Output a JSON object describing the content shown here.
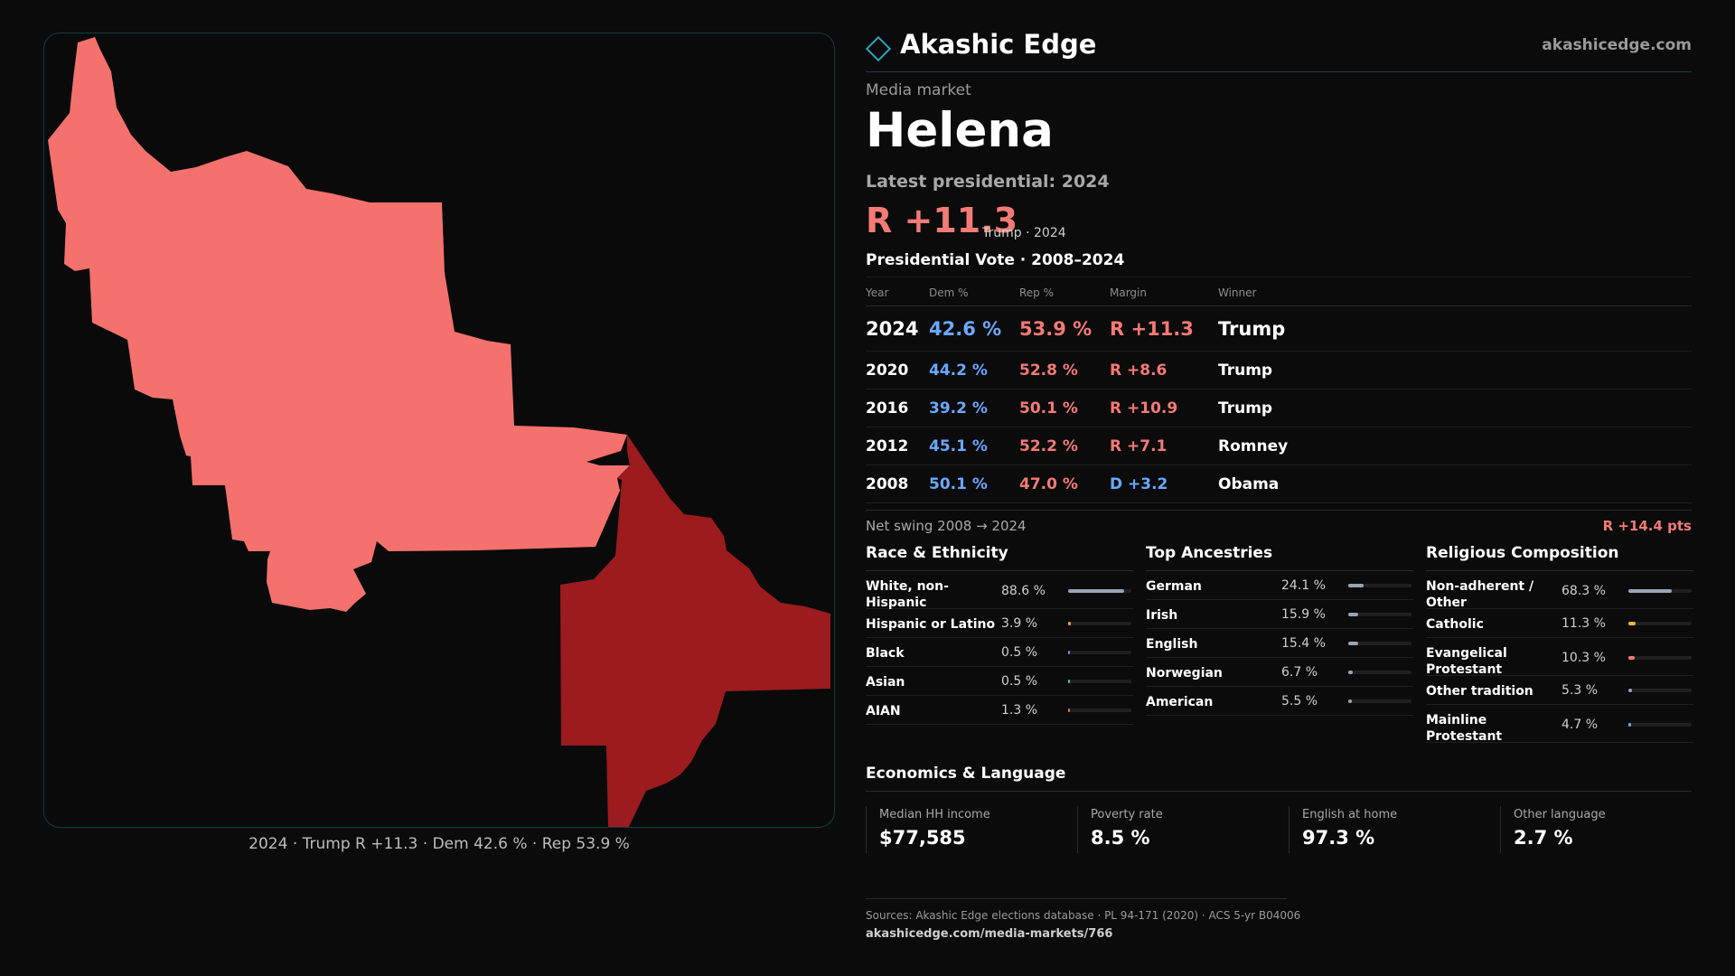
{
  "brand": {
    "name": "Akashic Edge",
    "url": "akashicedge.com"
  },
  "header": {
    "kicker": "Media market",
    "market_name": "Helena",
    "latest": "Latest presidential: 2024",
    "margin": "R +11.3",
    "margin_note": "Trump · 2024"
  },
  "map": {
    "caption": "2024 · Trump R +11.3 · Dem 42.6 % · Rep 53.9 %",
    "colors": {
      "light_rep": "#f4716d",
      "dark_rep": "#9b1b1e",
      "border": "#143a40"
    }
  },
  "votes": {
    "title": "Presidential Vote · 2008–2024",
    "columns": [
      "Year",
      "Dem %",
      "Rep %",
      "Margin",
      "Winner"
    ],
    "rows": [
      {
        "year": "2024",
        "dem": "42.6 %",
        "rep": "53.9 %",
        "margin": "R +11.3",
        "winner": "Trump"
      },
      {
        "year": "2020",
        "dem": "44.2 %",
        "rep": "52.8 %",
        "margin": "R +8.6",
        "winner": "Trump"
      },
      {
        "year": "2016",
        "dem": "39.2 %",
        "rep": "50.1 %",
        "margin": "R +10.9",
        "winner": "Trump"
      },
      {
        "year": "2012",
        "dem": "45.1 %",
        "rep": "52.2 %",
        "margin": "R +7.1",
        "winner": "Romney"
      },
      {
        "year": "2008",
        "dem": "50.1 %",
        "rep": "47.0 %",
        "margin": "D +3.2",
        "winner": "Obama"
      }
    ],
    "net_swing_label": "Net swing 2008 → 2024",
    "net_swing_value": "R +14.4 pts"
  },
  "race": {
    "title": "Race & Ethnicity",
    "items": [
      {
        "label": "White, non-Hispanic",
        "value": "88.6 %",
        "pct": 88.6,
        "color": "#9aa4b2"
      },
      {
        "label": "Hispanic or Latino",
        "value": "3.9 %",
        "pct": 3.9,
        "color": "#e8a13a"
      },
      {
        "label": "Black",
        "value": "0.5 %",
        "pct": 0.5,
        "color": "#8b7cf6"
      },
      {
        "label": "Asian",
        "value": "0.5 %",
        "pct": 0.5,
        "color": "#4fc3a1"
      },
      {
        "label": "AIAN",
        "value": "1.3 %",
        "pct": 1.3,
        "color": "#e07a3a"
      }
    ]
  },
  "ancestry": {
    "title": "Top Ancestries",
    "items": [
      {
        "label": "German",
        "value": "24.1 %",
        "pct": 24.1,
        "color": "#9aa4b2"
      },
      {
        "label": "Irish",
        "value": "15.9 %",
        "pct": 15.9,
        "color": "#9aa4b2"
      },
      {
        "label": "English",
        "value": "15.4 %",
        "pct": 15.4,
        "color": "#9aa4b2"
      },
      {
        "label": "Norwegian",
        "value": "6.7 %",
        "pct": 6.7,
        "color": "#9aa4b2"
      },
      {
        "label": "American",
        "value": "5.5 %",
        "pct": 5.5,
        "color": "#9aa4b2"
      }
    ]
  },
  "religion": {
    "title": "Religious Composition",
    "items": [
      {
        "label": "Non-adherent / Other",
        "value": "68.3 %",
        "pct": 68.3,
        "color": "#9aa4b2"
      },
      {
        "label": "Catholic",
        "value": "11.3 %",
        "pct": 11.3,
        "color": "#e8b83a"
      },
      {
        "label": "Evangelical Protestant",
        "value": "10.3 %",
        "pct": 10.3,
        "color": "#f47a76"
      },
      {
        "label": "Other tradition",
        "value": "5.3 %",
        "pct": 5.3,
        "color": "#9aa4b2"
      },
      {
        "label": "Mainline Protestant",
        "value": "4.7 %",
        "pct": 4.7,
        "color": "#6aa8ff"
      }
    ]
  },
  "economics": {
    "title": "Economics & Language",
    "items": [
      {
        "label": "Median HH income",
        "value": "$77,585"
      },
      {
        "label": "Poverty rate",
        "value": "8.5 %"
      },
      {
        "label": "English at home",
        "value": "97.3 %"
      },
      {
        "label": "Other language",
        "value": "2.7 %"
      }
    ]
  },
  "sources": {
    "text": "Sources: Akashic Edge elections database · PL 94-171 (2020) · ACS 5-yr B04006",
    "url": "akashicedge.com/media-markets/766"
  }
}
